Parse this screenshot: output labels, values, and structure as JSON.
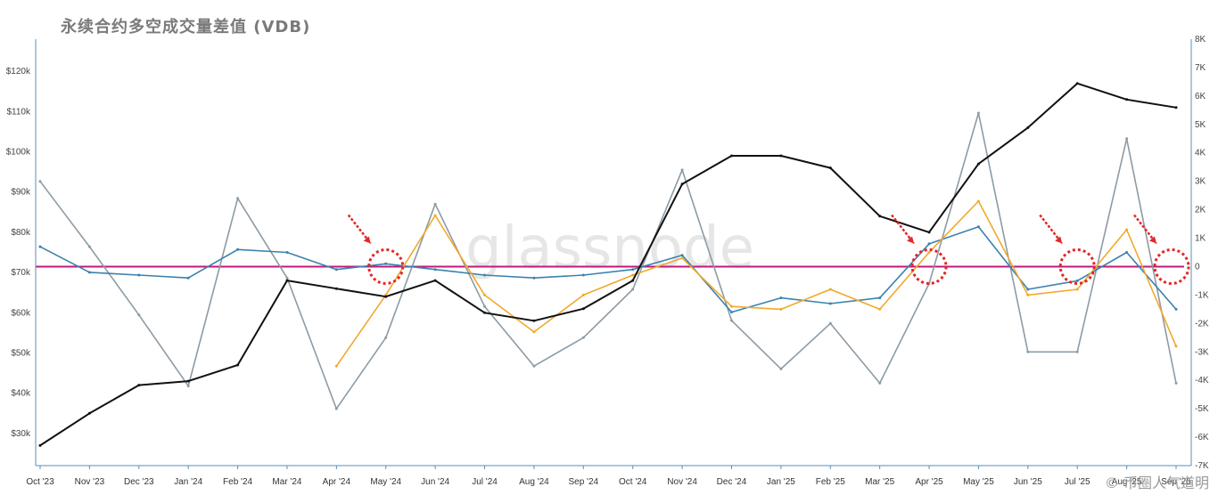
{
  "title": "永续合约多空成交量差值 (VDB)",
  "watermark": "glassnode",
  "credit": "© 币圈人气道明",
  "chart_data": {
    "type": "line",
    "x_labels": [
      "Oct '23",
      "Nov '23",
      "Dec '23",
      "Jan '24",
      "Feb '24",
      "Mar '24",
      "Apr '24",
      "May '24",
      "Jun '24",
      "Jul '24",
      "Aug '24",
      "Sep '24",
      "Oct '24",
      "Nov '24",
      "Dec '24",
      "Jan '25",
      "Feb '25",
      "Mar '25",
      "Apr '25",
      "May '25",
      "Jun '25",
      "Jul '25",
      "Aug '25",
      "Sep '25"
    ],
    "left_axis": {
      "ticks": [
        "$30k",
        "$40k",
        "$50k",
        "$60k",
        "$70k",
        "$80k",
        "$90k",
        "$100k",
        "$110k",
        "$120k"
      ],
      "ylim": [
        22000,
        128000
      ]
    },
    "right_axis": {
      "ticks": [
        "-7K",
        "-6K",
        "-5K",
        "-4K",
        "-3K",
        "-2K",
        "-1K",
        "0",
        "1K",
        "2K",
        "3K",
        "4K",
        "5K",
        "6K",
        "7K",
        "8K"
      ],
      "ylim": [
        -7000,
        8000
      ]
    },
    "reference_line": {
      "axis": "right",
      "value": 0,
      "color": "#c2187b"
    },
    "highlight_months": [
      "May '24",
      "Apr '25",
      "Jul '25",
      "Sep '25"
    ],
    "series": [
      {
        "axis": "left",
        "color": "#111111",
        "values": [
          27000,
          35000,
          42000,
          43000,
          47000,
          68000,
          66000,
          64000,
          68000,
          60000,
          58000,
          61000,
          68000,
          92000,
          99000,
          99000,
          96000,
          84000,
          80000,
          97000,
          106000,
          117000,
          113000,
          111000
        ]
      },
      {
        "axis": "right",
        "color": "#3b82ae",
        "values": [
          700,
          -200,
          -300,
          -400,
          600,
          500,
          -100,
          100,
          -100,
          -300,
          -400,
          -300,
          -100,
          400,
          -1600,
          -1100,
          -1300,
          -1100,
          800,
          1400,
          -800,
          -500,
          500,
          -1500
        ]
      },
      {
        "axis": "right",
        "color": "#f0a92b",
        "values": [
          null,
          null,
          null,
          null,
          null,
          null,
          -3500,
          -1000,
          1800,
          -1000,
          -2300,
          -1000,
          -300,
          300,
          -1400,
          -1500,
          -800,
          -1500,
          500,
          2300,
          -1000,
          -800,
          1300,
          -2800
        ]
      },
      {
        "axis": "right",
        "color": "#8c9ba5",
        "values": [
          3000,
          700,
          -1700,
          -4200,
          2400,
          -400,
          -5000,
          -2500,
          2200,
          -1400,
          -3500,
          -2500,
          -800,
          3400,
          -1900,
          -3600,
          -2000,
          -4100,
          -600,
          5400,
          -3000,
          -3000,
          4500,
          -4100
        ]
      }
    ]
  }
}
